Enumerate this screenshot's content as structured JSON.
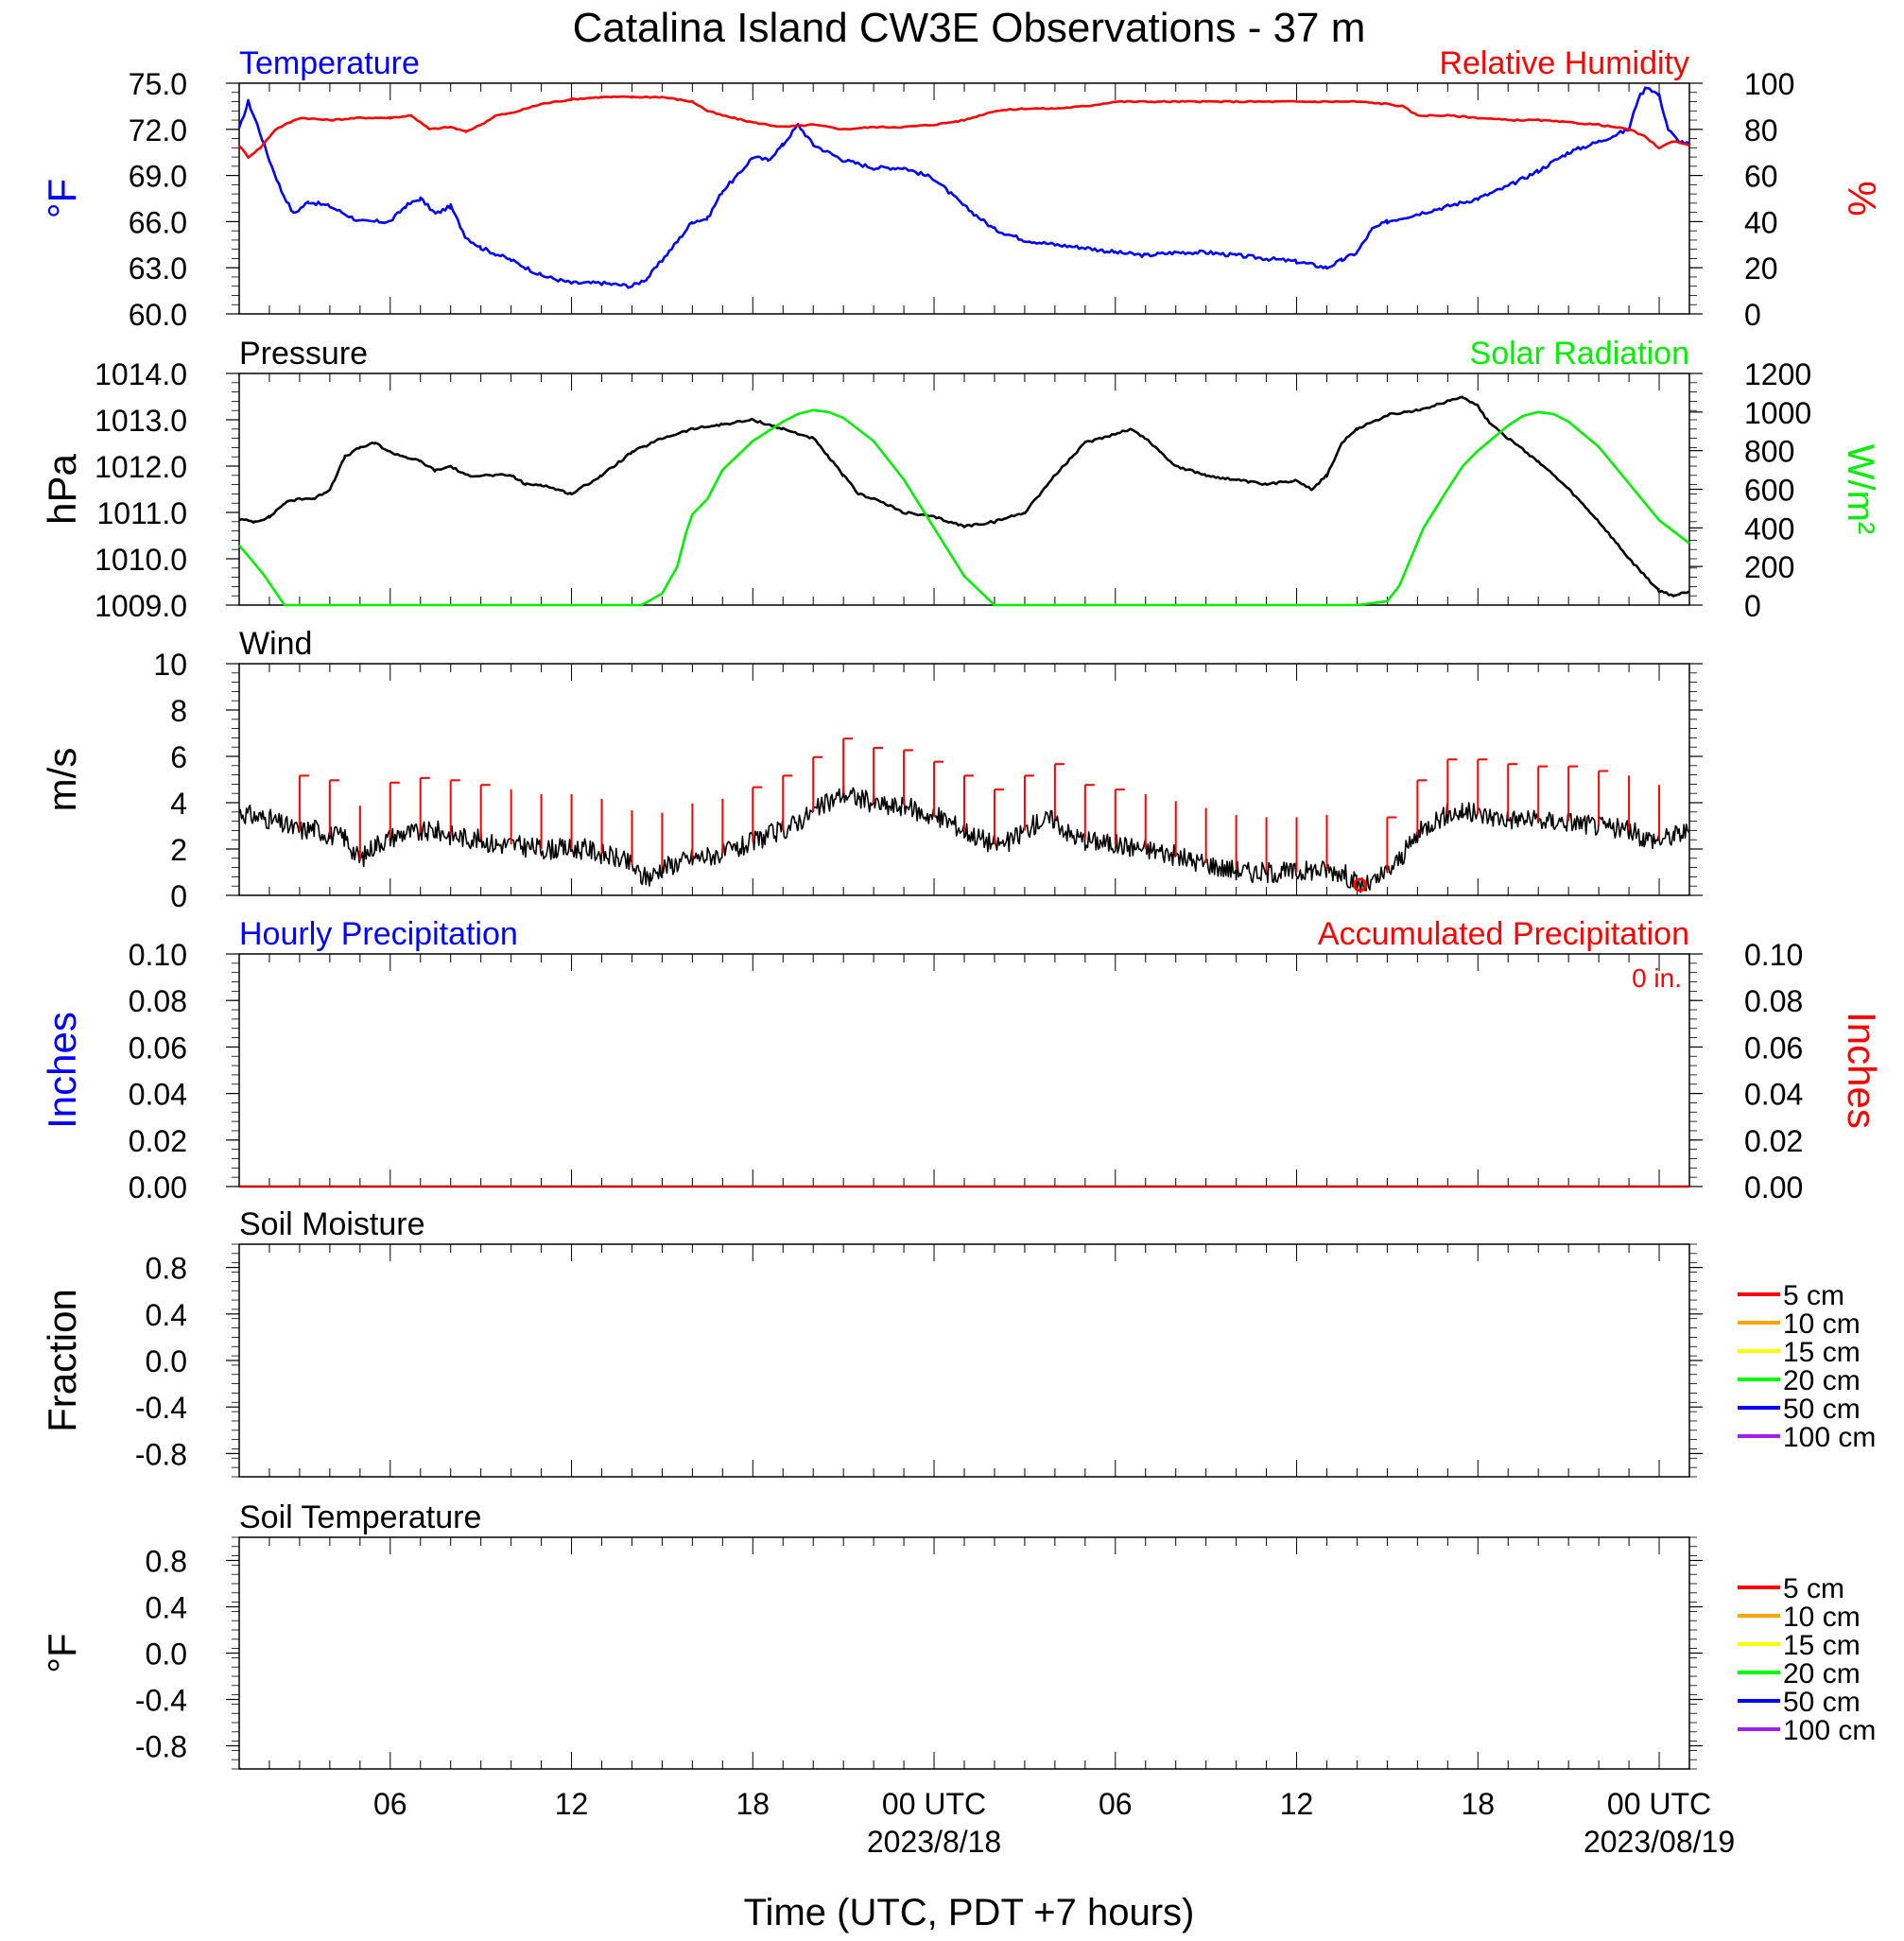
{
  "title": "Catalina Island CW3E Observations - 37 m",
  "xlabel": "Time (UTC, PDT +7 hours)",
  "x_ticks": [
    {
      "hour": 6,
      "label": "06",
      "sublabel": ""
    },
    {
      "hour": 12,
      "label": "12",
      "sublabel": ""
    },
    {
      "hour": 18,
      "label": "18",
      "sublabel": ""
    },
    {
      "hour": 24,
      "label": "00 UTC",
      "sublabel": "2023/8/18"
    },
    {
      "hour": 30,
      "label": "06",
      "sublabel": ""
    },
    {
      "hour": 36,
      "label": "12",
      "sublabel": ""
    },
    {
      "hour": 42,
      "label": "18",
      "sublabel": ""
    },
    {
      "hour": 48,
      "label": "00 UTC",
      "sublabel": "2023/08/19"
    }
  ],
  "chart_data": [
    {
      "type": "line",
      "title_left": "Temperature",
      "title_right": "Relative Humidity",
      "ylabel_left": "°F",
      "ylabel_right": "%",
      "ylim_left": [
        60,
        75
      ],
      "ylim_right": [
        0,
        100
      ],
      "yticks_left": [
        "60.0",
        "63.0",
        "66.0",
        "69.0",
        "72.0",
        "75.0"
      ],
      "yticks_right": [
        "0",
        "20",
        "40",
        "60",
        "80",
        "100"
      ],
      "x_range_hours": [
        1,
        49
      ],
      "colors": {
        "left": "#0000ff",
        "right": "#ff0000"
      },
      "series": [
        {
          "name": "Temperature",
          "axis": "left",
          "color": "#0000ff",
          "x": [
            1,
            1.3,
            1.6,
            2,
            2.4,
            2.8,
            3.3,
            4,
            5,
            6,
            6.5,
            7,
            7.5,
            8,
            8.5,
            9,
            10,
            11,
            12,
            13,
            14,
            14.5,
            15,
            15.5,
            16,
            16.5,
            17,
            17.5,
            18,
            18.5,
            19,
            19.5,
            20,
            21,
            22,
            23,
            24,
            25,
            26,
            27,
            28,
            29,
            30,
            31,
            32,
            33,
            34,
            35,
            36,
            37,
            37.5,
            38,
            38.5,
            39,
            40,
            41,
            42,
            43,
            44,
            45,
            46,
            47,
            47.3,
            47.6,
            48,
            48.3,
            48.6,
            49
          ],
          "values": [
            72.0,
            73.8,
            72.3,
            70.0,
            68.0,
            66.5,
            67.3,
            67.0,
            66.0,
            66.0,
            67.0,
            67.5,
            66.5,
            67.0,
            65.0,
            64.3,
            63.5,
            62.5,
            62.0,
            62.0,
            61.8,
            62.3,
            63.5,
            64.7,
            66.0,
            66.2,
            68.0,
            69.0,
            70.2,
            70.0,
            71.0,
            72.3,
            71.0,
            70.0,
            69.5,
            69.5,
            68.8,
            67.0,
            65.5,
            64.8,
            64.5,
            64.3,
            64.0,
            63.8,
            64.0,
            64.0,
            63.8,
            63.6,
            63.4,
            63.0,
            63.5,
            64.0,
            65.5,
            66.0,
            66.5,
            67.0,
            67.5,
            68.3,
            69.3,
            70.5,
            71.2,
            72.0,
            74.0,
            74.8,
            74.2,
            72.0,
            71.3,
            71.0
          ]
        },
        {
          "name": "Relative Humidity",
          "axis": "right",
          "color": "#ff0000",
          "x": [
            1,
            1.3,
            1.7,
            2.2,
            3,
            4,
            5,
            6,
            6.7,
            7.3,
            8,
            8.5,
            9,
            9.5,
            10,
            11,
            12,
            13,
            14,
            15,
            16,
            16.5,
            17,
            18,
            19,
            20,
            21,
            22,
            23,
            24,
            25,
            26,
            27,
            28,
            29,
            30,
            32,
            34,
            36,
            37,
            38,
            39,
            39.5,
            40,
            41,
            42,
            43,
            44,
            45,
            46,
            47,
            47.5,
            48,
            48.5,
            49
          ],
          "values": [
            73,
            68,
            72,
            80,
            85,
            84,
            85,
            85,
            86,
            80,
            81,
            79,
            82,
            86,
            87,
            91,
            93,
            94,
            94,
            94,
            92,
            88,
            86,
            83,
            81,
            82,
            80,
            81,
            81,
            82,
            84,
            88,
            89,
            89,
            90,
            92,
            92,
            92,
            92,
            92,
            92,
            91,
            90,
            86,
            86,
            85,
            84,
            84,
            83,
            82,
            80,
            77,
            72,
            75,
            73
          ]
        }
      ]
    },
    {
      "type": "line",
      "title_left": "Pressure",
      "title_right": "Solar Radiation",
      "ylabel_left": "hPa",
      "ylabel_right": "W/m²",
      "ylim_left": [
        1009,
        1014
      ],
      "ylim_right": [
        0,
        1200
      ],
      "yticks_left": [
        "1009.0",
        "1010.0",
        "1011.0",
        "1012.0",
        "1013.0",
        "1014.0"
      ],
      "yticks_right": [
        "0",
        "200",
        "400",
        "600",
        "800",
        "1000",
        "1200"
      ],
      "x_range_hours": [
        1,
        49
      ],
      "colors": {
        "left": "#000000",
        "right": "#00ee00"
      },
      "series": [
        {
          "name": "Pressure",
          "axis": "left",
          "color": "#000000",
          "x": [
            1,
            1.5,
            2,
            2.5,
            3,
            3.5,
            4,
            4.5,
            5,
            5.5,
            6,
            6.5,
            7,
            7.5,
            8,
            8.5,
            9,
            10,
            10.5,
            11,
            12,
            13,
            14,
            15,
            16,
            17,
            18,
            19,
            20,
            20.5,
            21,
            21.5,
            22,
            23,
            24,
            25,
            26,
            27,
            28,
            29,
            30,
            30.5,
            31,
            31.5,
            32,
            33,
            34,
            35,
            36,
            36.5,
            37,
            37.5,
            38,
            39,
            40,
            41,
            41.5,
            42,
            42.3,
            43,
            44,
            45,
            46,
            47,
            48,
            48.5,
            49
          ],
          "values": [
            1010.85,
            1010.8,
            1010.9,
            1011.2,
            1011.3,
            1011.3,
            1011.5,
            1012.2,
            1012.4,
            1012.5,
            1012.3,
            1012.2,
            1012.1,
            1011.9,
            1012.0,
            1011.8,
            1011.8,
            1011.8,
            1011.6,
            1011.6,
            1011.4,
            1011.8,
            1012.3,
            1012.6,
            1012.8,
            1012.9,
            1013.0,
            1012.8,
            1012.6,
            1012.2,
            1011.8,
            1011.4,
            1011.3,
            1011.0,
            1010.9,
            1010.7,
            1010.8,
            1011.0,
            1011.8,
            1012.5,
            1012.7,
            1012.8,
            1012.6,
            1012.3,
            1012.0,
            1011.8,
            1011.7,
            1011.6,
            1011.7,
            1011.5,
            1011.8,
            1012.5,
            1012.8,
            1013.1,
            1013.2,
            1013.4,
            1013.5,
            1013.3,
            1013.0,
            1012.6,
            1012.1,
            1011.5,
            1010.8,
            1010.0,
            1009.3,
            1009.2,
            1009.3
          ]
        },
        {
          "name": "Solar Radiation",
          "axis": "right",
          "color": "#00ee00",
          "x": [
            1,
            1.8,
            2.5,
            3,
            6,
            9,
            12,
            14.3,
            14.5,
            15,
            15.5,
            15.8,
            16,
            16.5,
            17,
            18,
            19,
            19.5,
            20,
            20.5,
            21,
            22,
            23,
            24,
            25,
            26,
            27,
            30,
            33,
            36,
            38,
            39,
            39.4,
            39.8,
            40.2,
            40.6,
            41,
            41.5,
            42,
            43,
            43.5,
            44,
            44.5,
            45,
            46,
            47,
            48,
            49
          ],
          "values": [
            310,
            160,
            0,
            0,
            0,
            0,
            0,
            0,
            15,
            60,
            200,
            380,
            470,
            550,
            700,
            850,
            950,
            990,
            1010,
            1000,
            970,
            850,
            650,
            400,
            150,
            0,
            0,
            0,
            0,
            0,
            0,
            20,
            100,
            250,
            400,
            500,
            600,
            720,
            800,
            930,
            980,
            1000,
            990,
            950,
            820,
            630,
            440,
            320
          ]
        }
      ]
    },
    {
      "type": "line",
      "title_left": "Wind",
      "ylabel_left": "m/s",
      "ylim_left": [
        0,
        10
      ],
      "yticks_left": [
        "0",
        "2",
        "4",
        "6",
        "8",
        "10"
      ],
      "x_range_hours": [
        1,
        49
      ],
      "series": [
        {
          "name": "Wind",
          "axis": "left",
          "color": "#000000",
          "x": [
            1,
            1.5,
            2,
            2.5,
            3,
            3.5,
            4,
            4.5,
            5,
            5.5,
            6,
            6.5,
            7,
            7.5,
            8,
            8.5,
            9,
            9.5,
            10,
            10.5,
            11,
            11.5,
            12,
            12.5,
            13,
            13.5,
            14,
            14.3,
            14.6,
            15,
            15.5,
            16,
            16.5,
            17,
            17.5,
            18,
            18.5,
            19,
            19.5,
            20,
            20.5,
            21,
            21.5,
            22,
            22.5,
            23,
            23.5,
            24,
            24.5,
            25,
            25.5,
            26,
            26.5,
            27,
            27.5,
            28,
            28.5,
            29,
            29.5,
            30,
            30.5,
            31,
            31.5,
            32,
            32.5,
            33,
            33.5,
            34,
            34.5,
            35,
            35.5,
            36,
            36.5,
            37,
            37.5,
            38,
            38.3,
            38.6,
            39,
            39.5,
            40,
            40.5,
            41,
            41.5,
            42,
            42.5,
            43,
            43.5,
            44,
            44.5,
            45,
            45.5,
            46,
            46.5,
            47,
            47.5,
            48,
            48.5,
            49
          ],
          "values": [
            3.6,
            3.4,
            3.3,
            3.0,
            2.8,
            2.9,
            2.6,
            2.5,
            1.5,
            2.2,
            2.5,
            2.7,
            2.7,
            2.8,
            2.6,
            2.5,
            2.4,
            2.2,
            2.2,
            2.1,
            2.0,
            2.0,
            2.0,
            2.0,
            1.8,
            1.6,
            1.3,
            0.8,
            0.8,
            1.2,
            1.4,
            1.6,
            1.7,
            1.8,
            2.0,
            2.3,
            2.6,
            2.8,
            3.2,
            3.6,
            4.0,
            4.4,
            4.2,
            4.0,
            3.8,
            3.9,
            3.6,
            3.4,
            3.2,
            2.8,
            2.5,
            2.2,
            2.3,
            2.8,
            3.2,
            3.3,
            2.6,
            2.4,
            2.3,
            2.2,
            2.1,
            2.0,
            1.9,
            1.7,
            1.5,
            1.4,
            1.2,
            1.1,
            1.0,
            1.0,
            1.0,
            1.0,
            1.1,
            1.1,
            1.0,
            0.5,
            0.4,
            0.6,
            1.0,
            1.7,
            2.6,
            3.2,
            3.5,
            3.6,
            3.5,
            3.4,
            3.3,
            3.3,
            3.2,
            3.2,
            3.2,
            3.1,
            3.0,
            2.9,
            2.8,
            2.5,
            2.4,
            2.6,
            2.8
          ]
        }
      ],
      "barbs": {
        "color": "#ff0000",
        "calm_hour": 38.1,
        "hours": [
          3,
          4,
          5,
          6,
          7,
          8,
          9,
          10,
          11,
          12,
          13,
          14,
          15,
          16,
          17,
          18,
          19,
          20,
          21,
          22,
          23,
          24,
          25,
          26,
          27,
          28,
          29,
          30,
          31,
          32,
          33,
          34,
          35,
          36,
          37,
          39,
          40,
          41,
          42,
          43,
          44,
          45,
          46,
          47,
          48
        ],
        "flags": [
          1,
          1,
          0,
          1,
          1,
          1,
          1,
          0,
          0,
          0,
          0,
          0,
          0,
          0,
          0,
          1,
          1,
          1,
          1,
          1,
          1,
          1,
          1,
          1,
          1,
          1,
          1,
          1,
          0,
          0,
          0,
          0,
          0,
          0,
          0,
          1,
          1,
          1,
          1,
          1,
          1,
          1,
          1,
          0,
          0
        ]
      }
    },
    {
      "type": "line",
      "title_left": "Hourly Precipitation",
      "title_right": "Accumulated Precipitation",
      "annotation": "0 in.",
      "ylabel_left": "Inches",
      "ylabel_right": "Inches",
      "ylim_left": [
        0,
        0.1
      ],
      "ylim_right": [
        0,
        0.1
      ],
      "yticks_left": [
        "0.00",
        "0.02",
        "0.04",
        "0.06",
        "0.08",
        "0.10"
      ],
      "yticks_right": [
        "0.00",
        "0.02",
        "0.04",
        "0.06",
        "0.08",
        "0.10"
      ],
      "colors": {
        "left": "#0000ff",
        "right": "#ff0000"
      },
      "series": [
        {
          "name": "Accumulated Precipitation",
          "axis": "right",
          "color": "#cc0000",
          "x": [
            1,
            49
          ],
          "values": [
            0,
            0
          ]
        }
      ]
    },
    {
      "type": "line",
      "title_left": "Soil Moisture",
      "ylabel_left": "Fraction",
      "ylim_left": [
        -1,
        1
      ],
      "yticks_left": [
        "-0.8",
        "-0.4",
        "0.0",
        "0.4",
        "0.8"
      ],
      "legend": [
        {
          "label": "5 cm",
          "color": "#ff0000"
        },
        {
          "label": "10 cm",
          "color": "#ffa500"
        },
        {
          "label": "15 cm",
          "color": "#ffff00"
        },
        {
          "label": "20 cm",
          "color": "#00ff00"
        },
        {
          "label": "50 cm",
          "color": "#0000ff"
        },
        {
          "label": "100 cm",
          "color": "#a020f0"
        }
      ],
      "series": []
    },
    {
      "type": "line",
      "title_left": "Soil Temperature",
      "ylabel_left": "°F",
      "ylim_left": [
        -1,
        1
      ],
      "yticks_left": [
        "-0.8",
        "-0.4",
        "0.0",
        "0.4",
        "0.8"
      ],
      "legend": [
        {
          "label": "5 cm",
          "color": "#ff0000"
        },
        {
          "label": "10 cm",
          "color": "#ffa500"
        },
        {
          "label": "15 cm",
          "color": "#ffff00"
        },
        {
          "label": "20 cm",
          "color": "#00ff00"
        },
        {
          "label": "50 cm",
          "color": "#0000ff"
        },
        {
          "label": "100 cm",
          "color": "#a020f0"
        }
      ],
      "series": []
    }
  ]
}
